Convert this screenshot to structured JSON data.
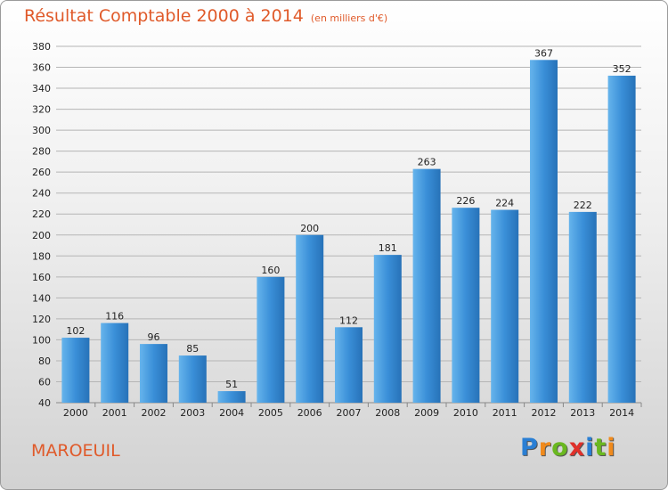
{
  "header": {
    "title": "Résultat Comptable 2000 à 2014",
    "subtitle": "(en milliers d'€)"
  },
  "footer": {
    "town": "MAROEUIL",
    "logo_letters": [
      "P",
      "r",
      "o",
      "x",
      "i",
      "t",
      "i"
    ],
    "logo_colors": [
      "#2a7fd4",
      "#f08a1c",
      "#6ab820",
      "#e0302a",
      "#2a7fd4",
      "#6ab820",
      "#f08a1c"
    ]
  },
  "colors": {
    "bar": "#3a8fd8",
    "bar_light": "#66b4ec",
    "bar_dark": "#2772b8",
    "grid": "#b5b5b5"
  },
  "chart_data": {
    "type": "bar",
    "categories": [
      "2000",
      "2001",
      "2002",
      "2003",
      "2004",
      "2005",
      "2006",
      "2007",
      "2008",
      "2009",
      "2010",
      "2011",
      "2012",
      "2013",
      "2014"
    ],
    "values": [
      102,
      116,
      96,
      85,
      51,
      160,
      200,
      112,
      181,
      263,
      226,
      224,
      367,
      222,
      352
    ],
    "title": "Résultat Comptable 2000 à 2014",
    "xlabel": "",
    "ylabel": "",
    "ylim": [
      40,
      380
    ],
    "yticks": [
      40,
      60,
      80,
      100,
      120,
      140,
      160,
      180,
      200,
      220,
      240,
      260,
      280,
      300,
      320,
      340,
      360,
      380
    ],
    "grid": true,
    "legend": "none"
  }
}
